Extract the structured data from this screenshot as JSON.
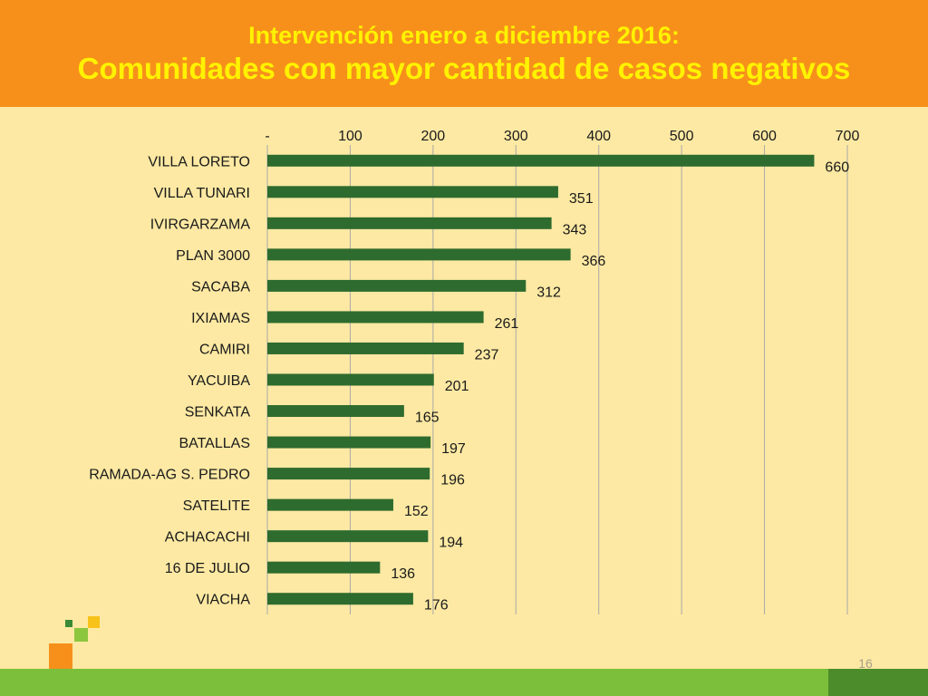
{
  "slide": {
    "subtitle": "Intervención enero a diciembre 2016:",
    "title": "Comunidades con mayor cantidad de casos negativos",
    "page_number": "16"
  },
  "colors": {
    "header": "#f6901b",
    "title_text": "#fff200",
    "background": "#fde9a3",
    "bar": "#2e6b2e",
    "bottom_band": "#7cbf3b"
  },
  "chart_data": {
    "type": "bar",
    "orientation": "horizontal",
    "categories": [
      "VILLA LORETO",
      "VILLA TUNARI",
      "IVIRGARZAMA",
      "PLAN 3000",
      "SACABA",
      "IXIAMAS",
      "CAMIRI",
      "YACUIBA",
      "SENKATA",
      "BATALLAS",
      "RAMADA-AG S. PEDRO",
      "SATELITE",
      "ACHACACHI",
      "16 DE JULIO",
      "VIACHA"
    ],
    "values": [
      660,
      351,
      343,
      366,
      312,
      261,
      237,
      201,
      165,
      197,
      196,
      152,
      194,
      136,
      176
    ],
    "xlim": [
      0,
      700
    ],
    "xticks": [
      0,
      100,
      200,
      300,
      400,
      500,
      600,
      700
    ],
    "xtick_labels": [
      "-",
      "100",
      "200",
      "300",
      "400",
      "500",
      "600",
      "700"
    ],
    "axis_position": "top",
    "grid": true,
    "legend": "none"
  }
}
